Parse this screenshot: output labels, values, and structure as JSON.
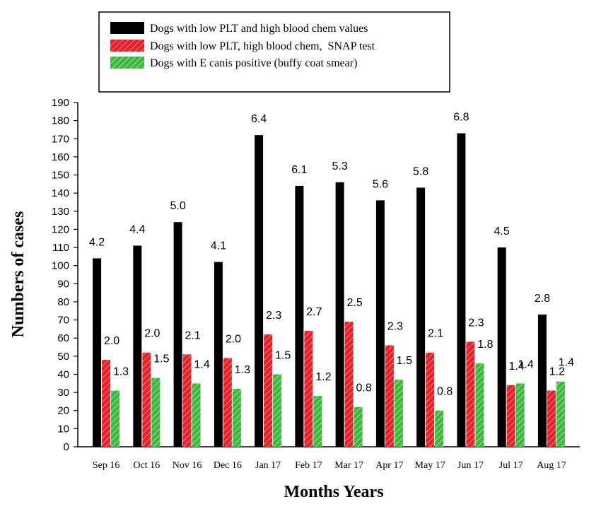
{
  "chart_data": {
    "type": "bar",
    "categories": [
      "Sep 16",
      "Oct 16",
      "Nov 16",
      "Dec 16",
      "Jan 17",
      "Feb 17",
      "Mar 17",
      "Apr 17",
      "May 17",
      "Jun 17",
      "Jul 17",
      "Aug 17"
    ],
    "series": [
      {
        "name": "Dogs with low PLT and high blood chem values",
        "color": "#000000",
        "pattern": "solid",
        "values": [
          104,
          111,
          124,
          102,
          172,
          144,
          146,
          136,
          143,
          173,
          110,
          73
        ],
        "labels": [
          "4.2",
          "4.4",
          "5.0",
          "4.1",
          "6.4",
          "6.1",
          "5.3",
          "5.6",
          "5.8",
          "6.8",
          "4.5",
          "2.8"
        ]
      },
      {
        "name": "Dogs with low PLT, high blood chem,  SNAP test",
        "color": "#e8202a",
        "pattern": "hatch",
        "values": [
          48,
          52,
          51,
          49,
          62,
          64,
          69,
          56,
          52,
          58,
          34,
          31
        ],
        "labels": [
          "2.0",
          "2.0",
          "2.1",
          "2.0",
          "2.3",
          "2.7",
          "2.5",
          "2.3",
          "2.1",
          "2.3",
          "1.4",
          "1.2"
        ]
      },
      {
        "name": "Dogs with E canis positive (buffy coat smear)",
        "color": "#3cb93c",
        "pattern": "hatch",
        "values": [
          31,
          38,
          35,
          32,
          40,
          28,
          22,
          37,
          20,
          46,
          35,
          36
        ],
        "labels": [
          "1.3",
          "1.5",
          "1.4",
          "1.3",
          "1.5",
          "1.2",
          "0.8",
          "1.5",
          "0.8",
          "1.8",
          "1.4",
          "1.4"
        ]
      }
    ],
    "xlabel": "Months Years",
    "ylabel": "Numbers of cases",
    "ylim": [
      0,
      190
    ],
    "yticks": [
      "0",
      "10",
      "20",
      "30",
      "40",
      "50",
      "60",
      "70",
      "80",
      "90",
      "100",
      "110",
      "120",
      "130",
      "140",
      "150",
      "160",
      "170",
      "180",
      "190"
    ],
    "grid": false,
    "legend_position": "top"
  }
}
